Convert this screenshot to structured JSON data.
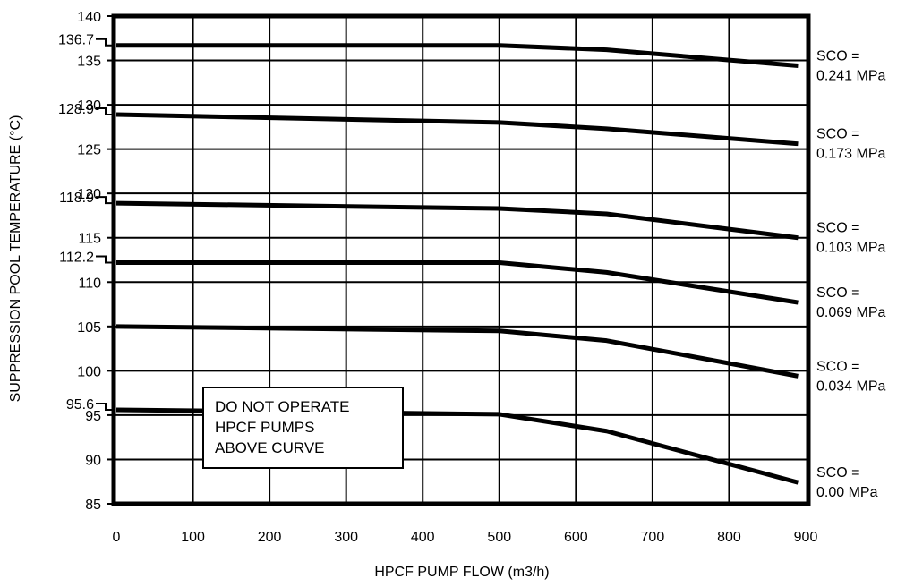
{
  "chart_data": {
    "type": "line",
    "title": "",
    "xlabel": "HPCF PUMP FLOW (m3/h)",
    "ylabel": "SUPPRESSION POOL TEMPERATURE (°C)",
    "xlim": [
      0,
      900
    ],
    "ylim": [
      85,
      140
    ],
    "x_ticks": [
      "0",
      "100",
      "200",
      "300",
      "400",
      "500",
      "600",
      "700",
      "800",
      "900"
    ],
    "y_ticks": [
      "85",
      "90",
      "95",
      "100",
      "105",
      "110",
      "115",
      "120",
      "125",
      "130",
      "135",
      "140"
    ],
    "y_special_ticks": [
      {
        "label": "136.7",
        "value": 136.7
      },
      {
        "label": "128.9",
        "value": 128.9
      },
      {
        "label": "118.9",
        "value": 118.9
      },
      {
        "label": "112.2",
        "value": 112.2
      },
      {
        "label": "95.6",
        "value": 95.6
      }
    ],
    "grid": true,
    "legend": "none",
    "note": [
      "DO NOT OPERATE",
      "HPCF PUMPS",
      "ABOVE CURVE"
    ],
    "series": [
      {
        "label_line1": "SCO =",
        "label_line2": "0.241 MPa",
        "x": [
          0,
          500,
          640,
          890
        ],
        "y": [
          136.7,
          136.7,
          136.2,
          134.4
        ]
      },
      {
        "label_line1": "SCO =",
        "label_line2": "0.173 MPa",
        "x": [
          0,
          500,
          640,
          890
        ],
        "y": [
          128.9,
          128.0,
          127.3,
          125.6
        ]
      },
      {
        "label_line1": "SCO =",
        "label_line2": "0.103 MPa",
        "x": [
          0,
          500,
          640,
          890
        ],
        "y": [
          118.9,
          118.3,
          117.7,
          115.0
        ]
      },
      {
        "label_line1": "SCO =",
        "label_line2": "0.069 MPa",
        "x": [
          0,
          500,
          640,
          890
        ],
        "y": [
          112.2,
          112.2,
          111.1,
          107.7
        ]
      },
      {
        "label_line1": "SCO =",
        "label_line2": "0.034 MPa",
        "x": [
          0,
          500,
          640,
          890
        ],
        "y": [
          105.0,
          104.5,
          103.4,
          99.4
        ]
      },
      {
        "label_line1": "SCO =",
        "label_line2": "0.00 MPa",
        "x": [
          0,
          500,
          640,
          890
        ],
        "y": [
          95.6,
          95.1,
          93.2,
          87.4
        ]
      }
    ]
  }
}
